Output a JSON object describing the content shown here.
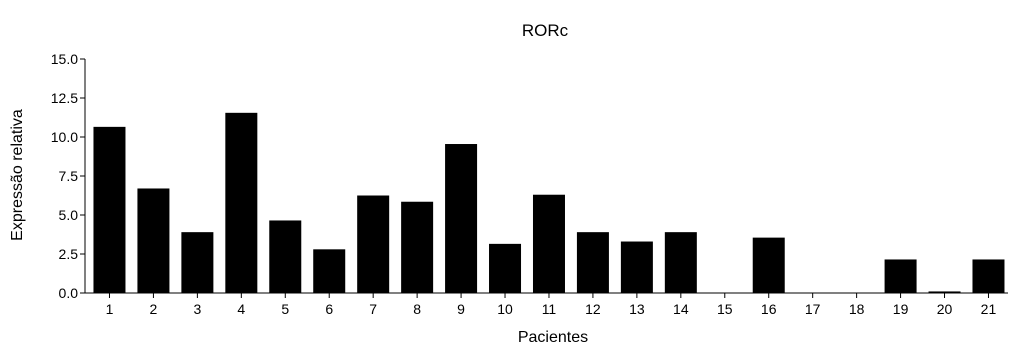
{
  "chart_data": {
    "type": "bar",
    "title": "RORc",
    "xlabel": "Pacientes",
    "ylabel": "Expressão relativa",
    "categories": [
      "1",
      "2",
      "3",
      "4",
      "5",
      "6",
      "7",
      "8",
      "9",
      "10",
      "11",
      "12",
      "13",
      "14",
      "15",
      "16",
      "17",
      "18",
      "19",
      "20",
      "21"
    ],
    "values": [
      10.65,
      6.7,
      3.9,
      11.55,
      4.65,
      2.8,
      6.25,
      5.85,
      9.55,
      3.15,
      6.3,
      3.9,
      3.3,
      3.9,
      0,
      3.55,
      0,
      0,
      2.15,
      0.1,
      2.15
    ],
    "yticks": [
      "0.0",
      "2.5",
      "5.0",
      "7.5",
      "10.0",
      "12.5",
      "15.0"
    ],
    "ylim": [
      0,
      15
    ],
    "grid": false,
    "bar_color": "#000000"
  }
}
